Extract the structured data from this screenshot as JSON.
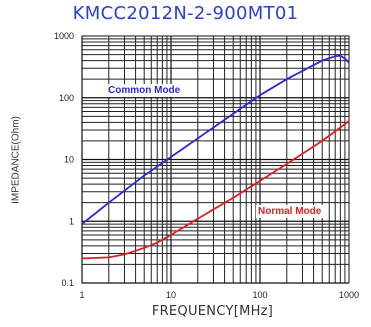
{
  "chart_data": {
    "type": "line",
    "title": "KMCC2012N-2-900MT01",
    "xlabel": "FREQUENCY[MHz]",
    "ylabel": "IMPEDANCE(Ohm)",
    "x_scale": "log",
    "y_scale": "log",
    "xlim": [
      1,
      1000
    ],
    "ylim": [
      0.1,
      1000
    ],
    "x_ticks": [
      {
        "value": 1,
        "label": "1"
      },
      {
        "value": 10,
        "label": "10"
      },
      {
        "value": 100,
        "label": "100"
      },
      {
        "value": 1000,
        "label": "1000"
      }
    ],
    "y_ticks": [
      {
        "value": 0.1,
        "label": "0.1"
      },
      {
        "value": 1,
        "label": "1"
      },
      {
        "value": 10,
        "label": "10"
      },
      {
        "value": 100,
        "label": "100"
      },
      {
        "value": 1000,
        "label": "1000"
      }
    ],
    "grid": true,
    "series": [
      {
        "name": "Common Mode",
        "color": "#2a2ad8",
        "x": [
          1,
          2,
          5,
          10,
          20,
          50,
          100,
          200,
          500,
          700,
          800,
          900,
          1000
        ],
        "y": [
          0.9,
          2,
          5.5,
          11,
          22,
          55,
          110,
          200,
          400,
          470,
          480,
          430,
          370
        ]
      },
      {
        "name": "Normal Mode",
        "color": "#e02020",
        "x": [
          1,
          2,
          3,
          5,
          7,
          10,
          20,
          50,
          100,
          200,
          500,
          1000
        ],
        "y": [
          0.25,
          0.26,
          0.29,
          0.37,
          0.45,
          0.6,
          1.1,
          2.4,
          4.5,
          8.5,
          20,
          42
        ]
      }
    ]
  }
}
